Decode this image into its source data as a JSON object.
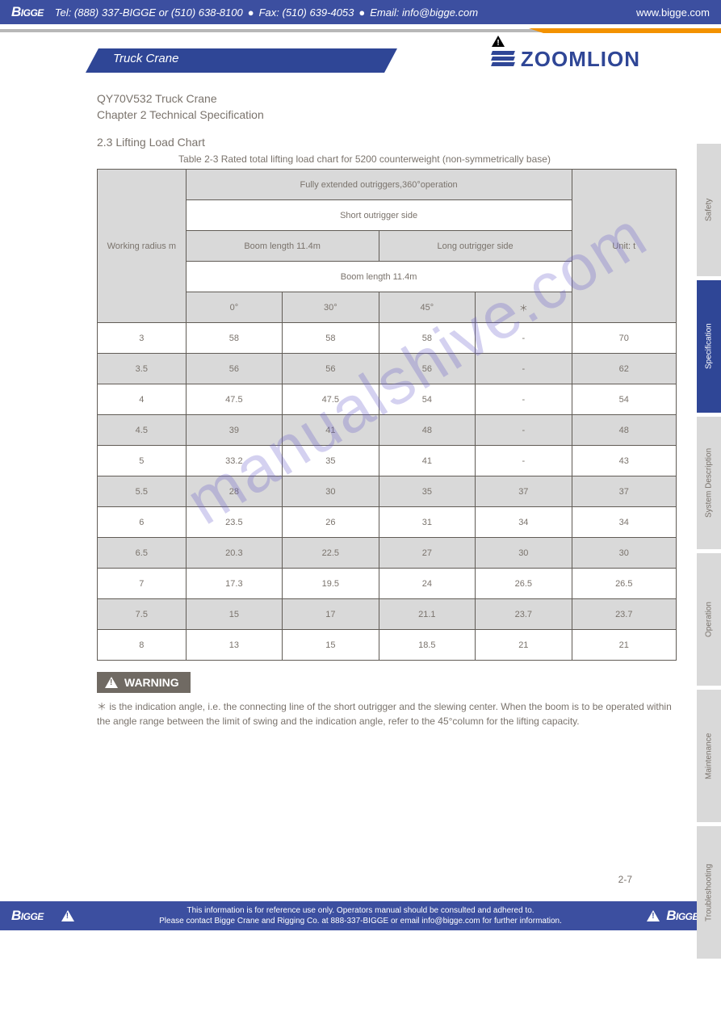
{
  "topbar": {
    "tel": "Tel: (888) 337-BIGGE or (510) 638-8100",
    "fax": "Fax: (510) 639-4053",
    "email": "Email: info@bigge.com",
    "site": "www.bigge.com",
    "brand": "BIGGE"
  },
  "header": {
    "band": "Truck Crane",
    "warning_icon": "warning",
    "brand": "ZOOMLION"
  },
  "doc": {
    "title": "QY70V532 Truck Crane",
    "sub": "Chapter 2 Technical Specification",
    "section": "2.3 Lifting Load Chart",
    "table_title": "Table 2-3 Rated total lifting load chart for 5200 counterweight (non-symmetrically base)"
  },
  "table": {
    "header": {
      "radius": "Working radius m",
      "cond": "Fully extended outriggers,360°operation",
      "unit": "Unit: t"
    },
    "short": {
      "label": "Short outrigger side",
      "len": "Boom length 11.4m"
    },
    "long": {
      "label": "Long outrigger side",
      "len1": "Boom length 11.4m",
      "len2": "Boom length 11.4m"
    },
    "angles": {
      "a0": "0°",
      "a30": "30°",
      "a45": "45°",
      "ast": "＊"
    },
    "rows": [
      {
        "r": "3",
        "c": [
          "58",
          "58",
          "58",
          "-"
        ],
        "d": "70",
        "shade": false
      },
      {
        "r": "3.5",
        "c": [
          "56",
          "56",
          "56",
          "-"
        ],
        "d": "62",
        "shade": true
      },
      {
        "r": "4",
        "c": [
          "47.5",
          "47.5",
          "54",
          "-"
        ],
        "d": "54",
        "shade": false
      },
      {
        "r": "4.5",
        "c": [
          "39",
          "41",
          "48",
          "-"
        ],
        "d": "48",
        "shade": true
      },
      {
        "r": "5",
        "c": [
          "33.2",
          "35",
          "41",
          "-"
        ],
        "d": "43",
        "shade": false
      },
      {
        "r": "5.5",
        "c": [
          "28",
          "30",
          "35",
          "37"
        ],
        "d": "37",
        "shade": true
      },
      {
        "r": "6",
        "c": [
          "23.5",
          "26",
          "31",
          "34"
        ],
        "d": "34",
        "shade": false
      },
      {
        "r": "6.5",
        "c": [
          "20.3",
          "22.5",
          "27",
          "30"
        ],
        "d": "30",
        "shade": true
      },
      {
        "r": "7",
        "c": [
          "17.3",
          "19.5",
          "24",
          "26.5"
        ],
        "d": "26.5",
        "shade": false
      },
      {
        "r": "7.5",
        "c": [
          "15",
          "17",
          "21.1",
          "23.7"
        ],
        "d": "23.7",
        "shade": true
      },
      {
        "r": "8",
        "c": [
          "13",
          "15",
          "18.5",
          "21"
        ],
        "d": "21",
        "shade": false
      }
    ]
  },
  "warning": {
    "label": "WARNING",
    "text": "＊  is the indication angle, i.e. the connecting line of the short outrigger and the slewing center. When the boom is to be operated within the angle range between the limit of swing and the indication angle, refer to the 45°column for the lifting capacity."
  },
  "sidetabs": [
    {
      "t": "Safety",
      "active": false
    },
    {
      "t": "Specification",
      "active": true
    },
    {
      "t": "System Description",
      "active": false
    },
    {
      "t": "Operation",
      "active": false
    },
    {
      "t": "Maintenance",
      "active": false
    },
    {
      "t": "Troubleshooting",
      "active": false
    }
  ],
  "footer": {
    "l1": "This information is for reference use only. Operators manual should be consulted and adhered to.",
    "l2": "Please contact Bigge Crane and Rigging Co. at 888-337-BIGGE or email info@bigge.com for further information."
  },
  "pageno": "2-7",
  "watermark": "manualshive.com"
}
